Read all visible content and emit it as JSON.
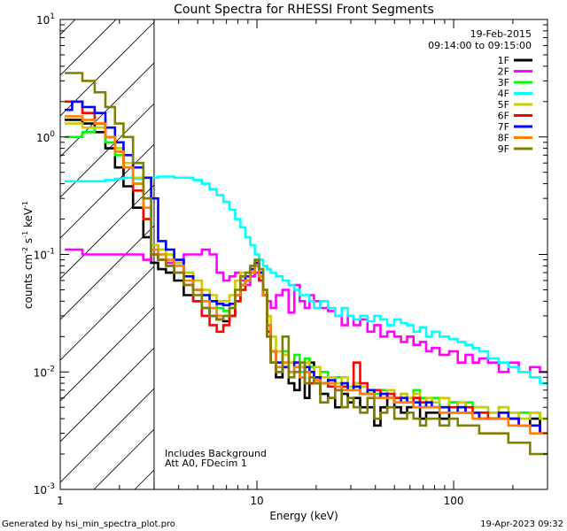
{
  "chart_data": {
    "type": "line",
    "title": "Count Spectra for RHESSI Front Segments",
    "xlabel": "Energy (keV)",
    "ylabel_parts": {
      "a": "counts cm",
      "b": "-2",
      "c": " s",
      "d": "-1",
      "e": " keV",
      "f": "-1"
    },
    "xscale": "log",
    "yscale": "log",
    "xlim": [
      1,
      300
    ],
    "ylim": [
      0.001,
      10
    ],
    "x_ticks": [
      {
        "v": 1,
        "label": "1"
      },
      {
        "v": 10,
        "label": "10"
      },
      {
        "v": 100,
        "label": "100"
      }
    ],
    "y_ticks": [
      {
        "v": 0.001,
        "base": "10",
        "exp": "-3"
      },
      {
        "v": 0.01,
        "base": "10",
        "exp": "-2"
      },
      {
        "v": 0.1,
        "base": "10",
        "exp": "-1"
      },
      {
        "v": 1,
        "base": "10",
        "exp": "0"
      },
      {
        "v": 10,
        "base": "10",
        "exp": "1"
      }
    ],
    "date": "19-Feb-2015",
    "time_range": "09:14:00 to 09:15:00",
    "excluded_region_below_keV": 3,
    "notes": [
      "Includes Background",
      "Att A0, FDecim 1"
    ],
    "x": [
      1.1,
      1.2,
      1.4,
      1.6,
      1.8,
      2.0,
      2.2,
      2.5,
      2.8,
      3.0,
      3.3,
      3.6,
      4.0,
      4.5,
      5.0,
      5.5,
      6.0,
      6.5,
      7.0,
      7.5,
      8.0,
      8.5,
      9.0,
      9.5,
      10.0,
      10.5,
      11.0,
      11.5,
      12.0,
      13.0,
      14.0,
      15.0,
      16.0,
      17.0,
      18.0,
      19.0,
      20.0,
      22.0,
      24.0,
      26.0,
      28.0,
      30.0,
      32.0,
      35.0,
      38.0,
      41.0,
      44.0,
      48.0,
      52.0,
      56.0,
      60.0,
      65.0,
      70.0,
      75.0,
      80.0,
      90.0,
      100.0,
      110.0,
      120.0,
      130.0,
      140.0,
      160.0,
      180.0,
      200.0,
      230.0,
      260.0,
      290.0
    ],
    "series": [
      {
        "name": "1F",
        "color": "#000000",
        "values": [
          1.4,
          1.4,
          1.3,
          1.1,
          0.8,
          0.55,
          0.38,
          0.25,
          0.14,
          0.085,
          0.075,
          0.07,
          0.06,
          0.045,
          0.04,
          0.035,
          0.03,
          0.028,
          0.027,
          0.03,
          0.04,
          0.055,
          0.06,
          0.07,
          0.085,
          0.07,
          0.045,
          0.02,
          0.012,
          0.009,
          0.011,
          0.008,
          0.007,
          0.009,
          0.006,
          0.012,
          0.008,
          0.0065,
          0.006,
          0.005,
          0.0065,
          0.0055,
          0.006,
          0.005,
          0.005,
          0.0035,
          0.005,
          0.006,
          0.005,
          0.0045,
          0.005,
          0.006,
          0.004,
          0.0045,
          0.0045,
          0.004,
          0.0055,
          0.005,
          0.0045,
          0.0045,
          0.004,
          0.004,
          0.0045,
          0.004,
          0.0035,
          0.004,
          0.003
        ]
      },
      {
        "name": "2F",
        "color": "#ff00ff",
        "values": [
          0.11,
          0.11,
          0.1,
          0.1,
          0.1,
          0.1,
          0.1,
          0.1,
          0.09,
          0.1,
          0.09,
          0.085,
          0.085,
          0.1,
          0.1,
          0.11,
          0.1,
          0.07,
          0.06,
          0.065,
          0.07,
          0.06,
          0.055,
          0.065,
          0.07,
          0.06,
          0.05,
          0.04,
          0.035,
          0.045,
          0.05,
          0.032,
          0.055,
          0.04,
          0.035,
          0.045,
          0.04,
          0.035,
          0.033,
          0.03,
          0.025,
          0.03,
          0.025,
          0.028,
          0.022,
          0.025,
          0.02,
          0.022,
          0.02,
          0.018,
          0.02,
          0.017,
          0.018,
          0.015,
          0.016,
          0.014,
          0.015,
          0.012,
          0.014,
          0.012,
          0.013,
          0.012,
          0.01,
          0.012,
          0.01,
          0.011,
          0.01
        ]
      },
      {
        "name": "3F",
        "color": "#00ff00",
        "values": [
          1.0,
          1.0,
          1.1,
          1.2,
          0.9,
          0.7,
          0.55,
          0.4,
          0.2,
          0.12,
          0.11,
          0.1,
          0.09,
          0.07,
          0.05,
          0.045,
          0.04,
          0.035,
          0.033,
          0.035,
          0.04,
          0.05,
          0.06,
          0.07,
          0.08,
          0.07,
          0.05,
          0.025,
          0.015,
          0.012,
          0.015,
          0.012,
          0.014,
          0.01,
          0.013,
          0.011,
          0.009,
          0.01,
          0.008,
          0.009,
          0.008,
          0.0075,
          0.008,
          0.0075,
          0.007,
          0.0065,
          0.007,
          0.0065,
          0.006,
          0.0065,
          0.006,
          0.007,
          0.006,
          0.0055,
          0.006,
          0.005,
          0.0055,
          0.005,
          0.0055,
          0.005,
          0.005,
          0.0045,
          0.005,
          0.0045,
          0.0045,
          0.0045,
          0.004
        ]
      },
      {
        "name": "4F",
        "color": "#00ffff",
        "values": [
          0.42,
          0.42,
          0.42,
          0.42,
          0.43,
          0.44,
          0.45,
          0.44,
          0.45,
          0.45,
          0.46,
          0.46,
          0.45,
          0.45,
          0.43,
          0.4,
          0.36,
          0.32,
          0.28,
          0.24,
          0.2,
          0.17,
          0.14,
          0.12,
          0.1,
          0.09,
          0.08,
          0.075,
          0.07,
          0.065,
          0.06,
          0.055,
          0.05,
          0.045,
          0.045,
          0.04,
          0.035,
          0.04,
          0.035,
          0.03,
          0.035,
          0.03,
          0.028,
          0.03,
          0.027,
          0.03,
          0.028,
          0.025,
          0.028,
          0.026,
          0.025,
          0.022,
          0.024,
          0.02,
          0.022,
          0.02,
          0.019,
          0.018,
          0.017,
          0.016,
          0.015,
          0.013,
          0.012,
          0.011,
          0.01,
          0.009,
          0.008
        ]
      },
      {
        "name": "5F",
        "color": "#cccc00",
        "values": [
          1.3,
          1.3,
          1.2,
          1.2,
          1.0,
          0.8,
          0.6,
          0.45,
          0.3,
          0.12,
          0.11,
          0.1,
          0.085,
          0.07,
          0.06,
          0.05,
          0.045,
          0.04,
          0.04,
          0.045,
          0.06,
          0.07,
          0.07,
          0.08,
          0.09,
          0.075,
          0.05,
          0.03,
          0.02,
          0.015,
          0.014,
          0.012,
          0.012,
          0.011,
          0.012,
          0.01,
          0.011,
          0.009,
          0.009,
          0.008,
          0.009,
          0.0075,
          0.008,
          0.0075,
          0.007,
          0.007,
          0.0065,
          0.007,
          0.006,
          0.0065,
          0.006,
          0.0065,
          0.0055,
          0.006,
          0.0055,
          0.006,
          0.005,
          0.0055,
          0.005,
          0.005,
          0.005,
          0.0045,
          0.005,
          0.0045,
          0.004,
          0.0045,
          0.004
        ]
      },
      {
        "name": "6F",
        "color": "#ff0000",
        "values": [
          2.0,
          2.0,
          1.6,
          1.3,
          1.0,
          0.75,
          0.55,
          0.35,
          0.2,
          0.1,
          0.09,
          0.08,
          0.07,
          0.055,
          0.04,
          0.03,
          0.025,
          0.022,
          0.025,
          0.03,
          0.04,
          0.05,
          0.06,
          0.07,
          0.08,
          0.06,
          0.045,
          0.022,
          0.015,
          0.01,
          0.012,
          0.01,
          0.012,
          0.009,
          0.01,
          0.008,
          0.009,
          0.008,
          0.0075,
          0.007,
          0.0075,
          0.007,
          0.012,
          0.008,
          0.0065,
          0.007,
          0.006,
          0.0065,
          0.006,
          0.006,
          0.0055,
          0.006,
          0.0055,
          0.005,
          0.005,
          0.005,
          0.005,
          0.0045,
          0.005,
          0.0045,
          0.0045,
          0.004,
          0.004,
          0.004,
          0.0035,
          0.0035,
          0.003
        ]
      },
      {
        "name": "7F",
        "color": "#0000ff",
        "values": [
          1.7,
          2.0,
          1.8,
          1.6,
          1.2,
          0.9,
          0.7,
          0.55,
          0.45,
          0.3,
          0.13,
          0.11,
          0.09,
          0.065,
          0.05,
          0.045,
          0.04,
          0.038,
          0.037,
          0.038,
          0.045,
          0.055,
          0.065,
          0.075,
          0.085,
          0.07,
          0.045,
          0.025,
          0.015,
          0.012,
          0.011,
          0.01,
          0.012,
          0.009,
          0.011,
          0.01,
          0.009,
          0.008,
          0.0085,
          0.0075,
          0.008,
          0.007,
          0.0075,
          0.0065,
          0.007,
          0.006,
          0.0065,
          0.006,
          0.0055,
          0.006,
          0.0055,
          0.0055,
          0.005,
          0.0055,
          0.005,
          0.005,
          0.0045,
          0.005,
          0.0045,
          0.0045,
          0.004,
          0.004,
          0.0045,
          0.004,
          0.0035,
          0.0035,
          0.003
        ]
      },
      {
        "name": "8F",
        "color": "#ff8000",
        "values": [
          1.5,
          1.5,
          1.4,
          1.3,
          1.0,
          0.75,
          0.55,
          0.4,
          0.25,
          0.11,
          0.1,
          0.09,
          0.08,
          0.06,
          0.05,
          0.04,
          0.035,
          0.03,
          0.03,
          0.035,
          0.045,
          0.055,
          0.06,
          0.07,
          0.08,
          0.065,
          0.045,
          0.025,
          0.015,
          0.011,
          0.012,
          0.01,
          0.011,
          0.009,
          0.01,
          0.009,
          0.0085,
          0.008,
          0.008,
          0.0075,
          0.007,
          0.007,
          0.007,
          0.0065,
          0.0065,
          0.006,
          0.006,
          0.006,
          0.0055,
          0.0055,
          0.0055,
          0.005,
          0.005,
          0.005,
          0.005,
          0.0045,
          0.0045,
          0.0045,
          0.0045,
          0.004,
          0.004,
          0.004,
          0.004,
          0.0035,
          0.0035,
          0.003,
          0.003
        ]
      },
      {
        "name": "9F",
        "color": "#808000",
        "values": [
          3.5,
          3.5,
          3.0,
          2.4,
          1.8,
          1.3,
          1.0,
          0.6,
          0.3,
          0.1,
          0.09,
          0.08,
          0.07,
          0.055,
          0.045,
          0.035,
          0.03,
          0.028,
          0.03,
          0.035,
          0.05,
          0.065,
          0.07,
          0.08,
          0.09,
          0.075,
          0.05,
          0.02,
          0.012,
          0.01,
          0.02,
          0.009,
          0.01,
          0.012,
          0.008,
          0.009,
          0.008,
          0.0055,
          0.006,
          0.007,
          0.005,
          0.006,
          0.005,
          0.0045,
          0.006,
          0.004,
          0.0045,
          0.005,
          0.004,
          0.004,
          0.0045,
          0.004,
          0.0035,
          0.004,
          0.004,
          0.0035,
          0.004,
          0.0035,
          0.0035,
          0.0035,
          0.003,
          0.003,
          0.003,
          0.0025,
          0.0025,
          0.002,
          0.002
        ]
      }
    ]
  },
  "footer": {
    "generated": "Generated by hsi_min_spectra_plot.pro",
    "timestamp": "19-Apr-2023 09:32"
  }
}
